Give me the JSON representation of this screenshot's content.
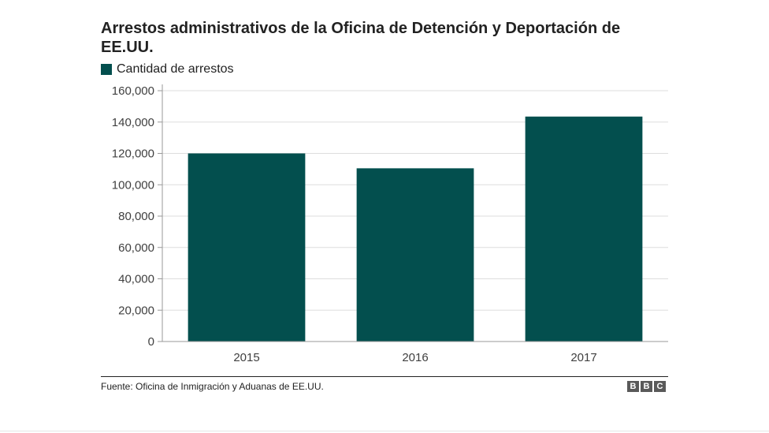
{
  "chart_data": {
    "type": "bar",
    "title": "Arrestos administrativos de la Oficina de Detención y Deportación de EE.UU.",
    "categories": [
      "2015",
      "2016",
      "2017"
    ],
    "series": [
      {
        "name": "Cantidad de arrestos",
        "values": [
          120000,
          110500,
          143500
        ]
      }
    ],
    "xlabel": "",
    "ylabel": "",
    "ylim": [
      0,
      160000
    ],
    "yticks": [
      0,
      20000,
      40000,
      60000,
      80000,
      100000,
      120000,
      140000,
      160000
    ],
    "ytick_labels": [
      "0",
      "20,000",
      "40,000",
      "60,000",
      "80,000",
      "100,000",
      "120,000",
      "140,000",
      "160,000"
    ],
    "grid": true,
    "legend_position": "top-left"
  },
  "colors": {
    "bar": "#034f4e",
    "grid": "#dddddd",
    "axis": "#999999"
  },
  "footer": {
    "source": "Fuente: Oficina de Inmigración y Aduanas de EE.UU.",
    "logo": [
      "B",
      "B",
      "C"
    ]
  }
}
